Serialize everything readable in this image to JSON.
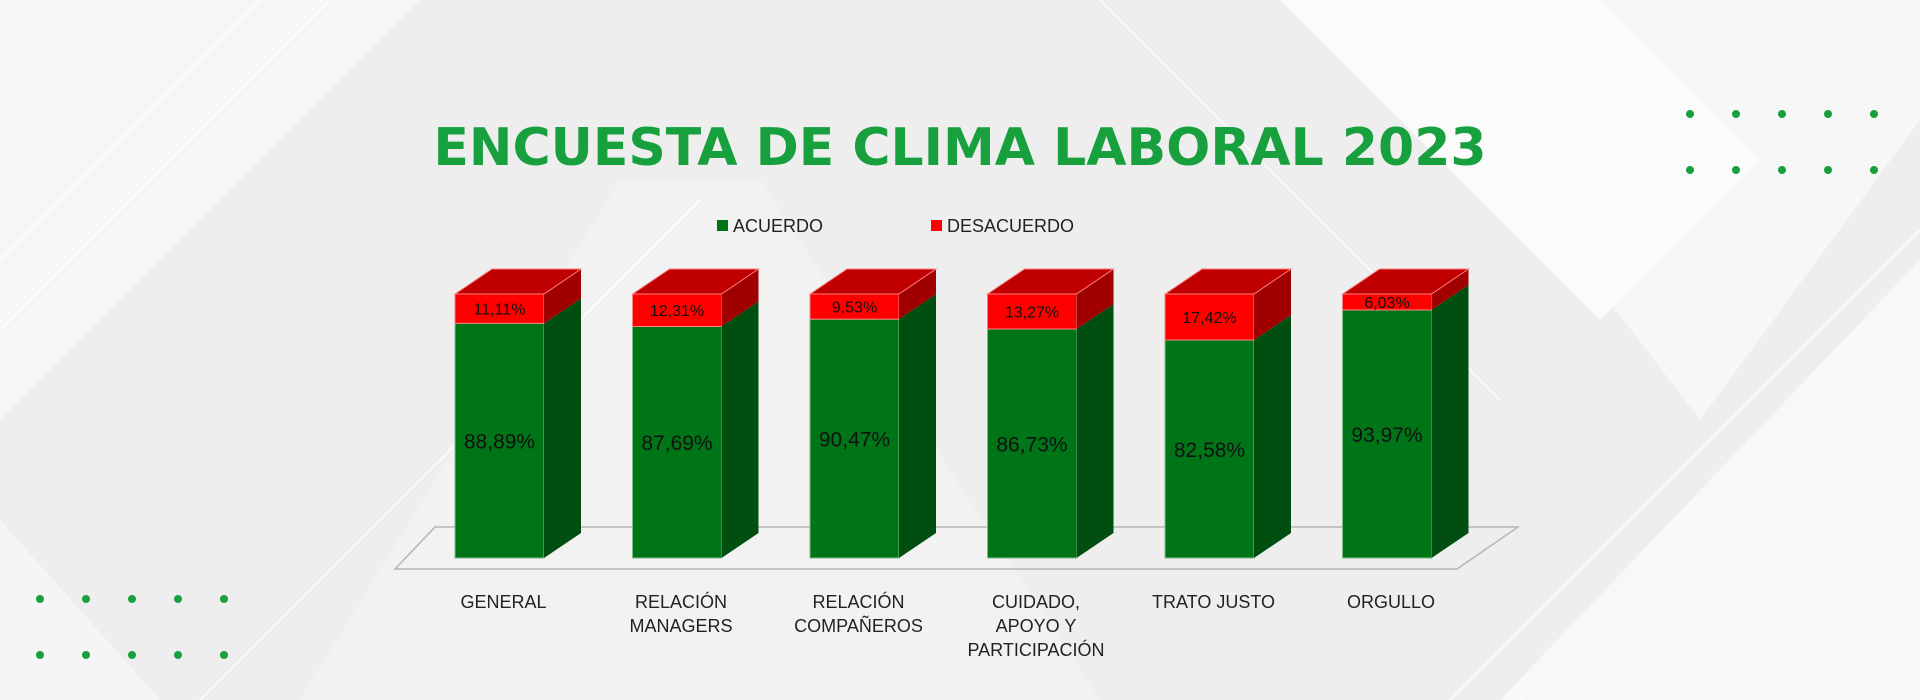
{
  "title": "ENCUESTA DE CLIMA LABORAL 2023",
  "colors": {
    "title": "#17a03d",
    "acuerdo": "#007518",
    "acuerdo_side": "#004e10",
    "desacuerdo": "#ff0000",
    "desacuerdo_top": "#c00000",
    "desacuerdo_side": "#a00000",
    "dots": "#17a03d"
  },
  "chart_data": {
    "type": "bar",
    "stacked": true,
    "style": "3d",
    "title": "ENCUESTA DE CLIMA LABORAL 2023",
    "legend_position": "top",
    "ylim": [
      0,
      100
    ],
    "grid": false,
    "categories": [
      "GENERAL",
      "RELACIÓN MANAGERS",
      "RELACIÓN COMPAÑEROS",
      "CUIDADO, APOYO Y PARTICIPACIÓN",
      "TRATO JUSTO",
      "ORGULLO"
    ],
    "category_lines": [
      [
        "GENERAL"
      ],
      [
        "RELACIÓN",
        "MANAGERS"
      ],
      [
        "RELACIÓN",
        "COMPAÑEROS"
      ],
      [
        "CUIDADO,",
        "APOYO Y",
        "PARTICIPACIÓN"
      ],
      [
        "TRATO JUSTO"
      ],
      [
        "ORGULLO"
      ]
    ],
    "series": [
      {
        "name": "ACUERDO",
        "values": [
          88.89,
          87.69,
          90.47,
          86.73,
          82.58,
          93.97
        ],
        "labels": [
          "88,89%",
          "87,69%",
          "90,47%",
          "86,73%",
          "82,58%",
          "93,97%"
        ]
      },
      {
        "name": "DESACUERDO",
        "values": [
          11.11,
          12.31,
          9.53,
          13.27,
          17.42,
          6.03
        ],
        "labels": [
          "11,11%",
          "12,31%",
          "9,53%",
          "13,27%",
          "17,42%",
          "6,03%"
        ]
      }
    ]
  }
}
